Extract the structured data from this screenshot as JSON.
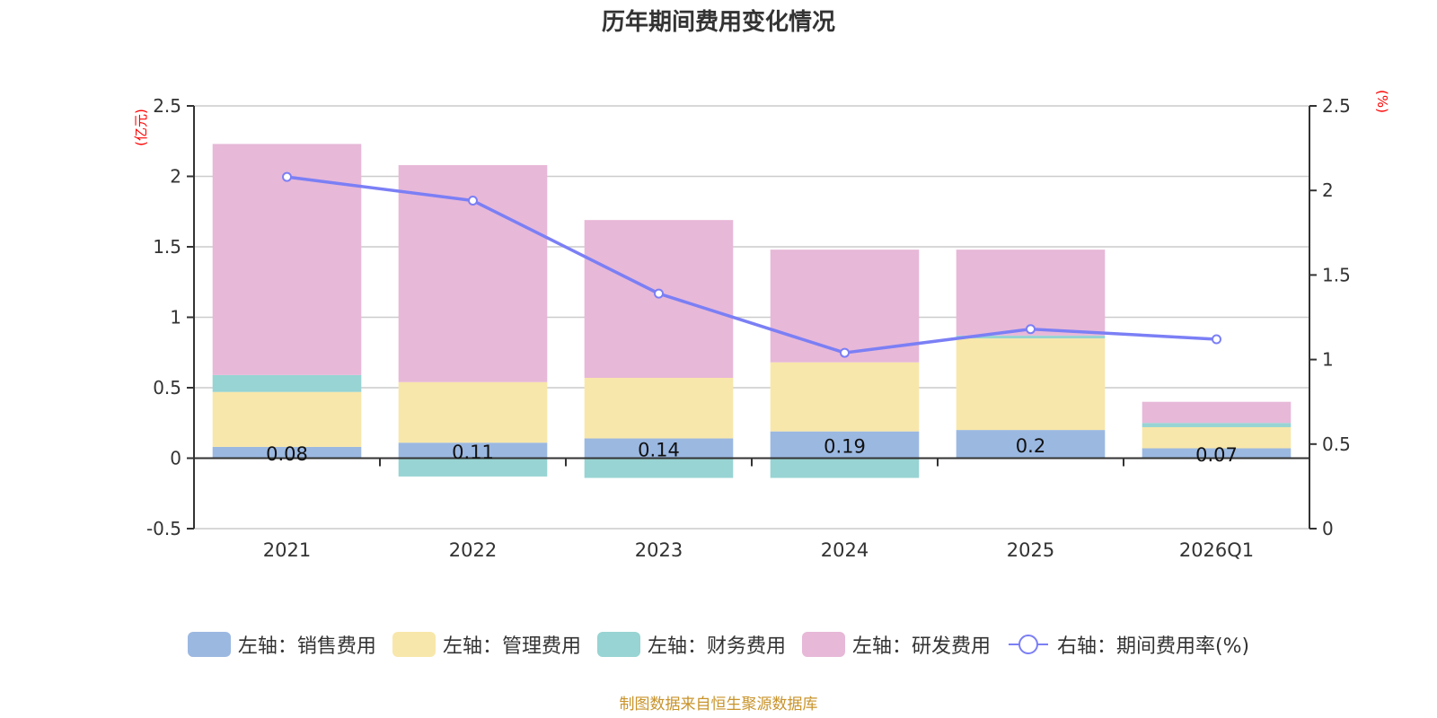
{
  "chart_data": {
    "type": "bar",
    "title": "历年期间费用变化情况",
    "categories": [
      "2021",
      "2022",
      "2023",
      "2024",
      "2025",
      "2026Q1"
    ],
    "stacked": true,
    "left_axis": {
      "unit_label": "(亿元)",
      "ylim": [
        -0.5,
        2.5
      ],
      "ticks": [
        -0.5,
        0,
        0.5,
        1,
        1.5,
        2,
        2.5
      ],
      "tick_labels": [
        "-0.5",
        "0",
        "0.5",
        "1",
        "1.5",
        "2",
        "2.5"
      ]
    },
    "right_axis": {
      "unit_label": "(%)",
      "ylim": [
        0,
        2.5
      ],
      "ticks": [
        0,
        0.5,
        1,
        1.5,
        2,
        2.5
      ],
      "tick_labels": [
        "0",
        "0.5",
        "1",
        "1.5",
        "2",
        "2.5"
      ]
    },
    "grid": true,
    "series": [
      {
        "name": "左轴：销售费用",
        "type": "bar",
        "axis": "left",
        "color": "#9bb8e1",
        "values": [
          0.08,
          0.11,
          0.14,
          0.19,
          0.2,
          0.07
        ],
        "data_labels": [
          "0.08",
          "0.11",
          "0.14",
          "0.19",
          "0.2",
          "0.07"
        ]
      },
      {
        "name": "左轴：管理费用",
        "type": "bar",
        "axis": "left",
        "color": "#f8e7aa",
        "values": [
          0.39,
          0.43,
          0.43,
          0.49,
          0.65,
          0.15
        ]
      },
      {
        "name": "左轴：财务费用",
        "type": "bar",
        "axis": "left",
        "color": "#97d4d3",
        "values": [
          0.12,
          -0.13,
          -0.14,
          -0.14,
          0.02,
          0.03
        ]
      },
      {
        "name": "左轴：研发费用",
        "type": "bar",
        "axis": "left",
        "color": "#e7b8d8",
        "values": [
          1.64,
          1.54,
          1.12,
          0.8,
          0.61,
          0.15
        ]
      },
      {
        "name": "右轴：期间费用率(%)",
        "type": "line",
        "axis": "right",
        "color": "#7b7ff5",
        "values": [
          2.08,
          1.94,
          1.39,
          1.04,
          1.18,
          1.12
        ]
      }
    ],
    "legend_position": "bottom",
    "source": "制图数据来自恒生聚源数据库"
  }
}
